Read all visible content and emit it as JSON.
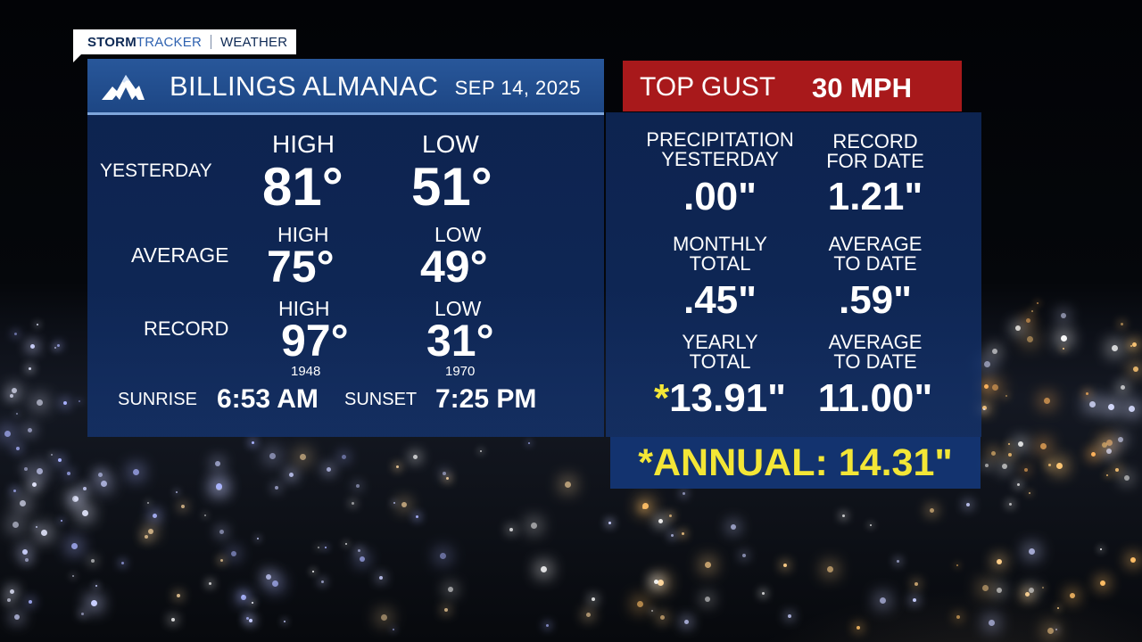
{
  "brand": {
    "storm": "STORM",
    "tracker": "TRACKER",
    "weather": "WEATHER"
  },
  "almanac": {
    "logo_icon": "mountain-logo-icon",
    "title": "BILLINGS ALMANAC",
    "date": "SEP 14, 2025",
    "yesterday": {
      "label": "YESTERDAY",
      "high_label": "HIGH",
      "high": "81°",
      "low_label": "LOW",
      "low": "51°"
    },
    "average": {
      "label": "AVERAGE",
      "high_label": "HIGH",
      "high": "75°",
      "low_label": "LOW",
      "low": "49°"
    },
    "record": {
      "label": "RECORD",
      "high_label": "HIGH",
      "high": "97°",
      "high_year": "1948",
      "low_label": "LOW",
      "low": "31°",
      "low_year": "1970"
    },
    "sun": {
      "sunrise_label": "SUNRISE",
      "sunrise": "6:53 AM",
      "sunset_label": "SUNSET",
      "sunset": "7:25 PM"
    }
  },
  "gust": {
    "label": "TOP GUST",
    "value": "30 MPH"
  },
  "precip": {
    "yesterday_label": "PRECIPITATION\nYESTERDAY",
    "yesterday": ".00\"",
    "record_label": "RECORD\nFOR DATE",
    "record": "1.21\"",
    "monthly_label": "MONTHLY\nTOTAL",
    "monthly": ".45\"",
    "monthly_avg_label": "AVERAGE\nTO DATE",
    "monthly_avg": ".59\"",
    "yearly_label": "YEARLY\nTOTAL",
    "yearly_star": "*",
    "yearly": "13.91\"",
    "yearly_avg_label": "AVERAGE\nTO DATE",
    "yearly_avg": "11.00\"",
    "annual": "*ANNUAL: 14.31\""
  },
  "colors": {
    "panel": "#163a7a",
    "header": "#24508f",
    "gust": "#a8191b",
    "highlight": "#f3e636"
  }
}
